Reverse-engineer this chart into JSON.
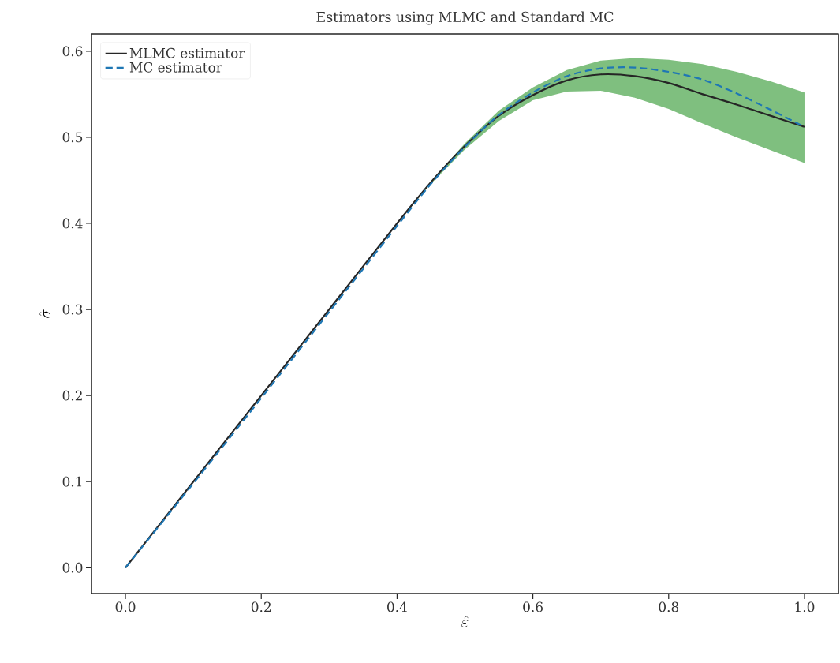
{
  "chart_data": {
    "type": "line",
    "title": "Estimators using MLMC and Standard MC",
    "xlabel": "\\hat{\\varepsilon}",
    "ylabel": "\\hat{\\sigma}",
    "x": [
      0,
      0.1,
      0.2,
      0.3,
      0.4,
      0.45,
      0.5,
      0.55,
      0.6,
      0.65,
      0.7,
      0.75,
      0.8,
      0.85,
      0.9,
      0.95,
      1.0
    ],
    "series": [
      {
        "name": "MLMC estimator",
        "color": "#262626",
        "line_style": "solid",
        "values": [
          0,
          0.1,
          0.2,
          0.3,
          0.4,
          0.448,
          0.49,
          0.525,
          0.549,
          0.566,
          0.573,
          0.571,
          0.563,
          0.55,
          0.538,
          0.525,
          0.512
        ],
        "lower": [
          0,
          0.1,
          0.2,
          0.3,
          0.4,
          0.446,
          0.486,
          0.519,
          0.543,
          0.553,
          0.554,
          0.546,
          0.533,
          0.516,
          0.5,
          0.485,
          0.47
        ],
        "upper": [
          0,
          0.1,
          0.2,
          0.3,
          0.4,
          0.449,
          0.493,
          0.531,
          0.558,
          0.578,
          0.589,
          0.592,
          0.59,
          0.585,
          0.576,
          0.565,
          0.552
        ]
      },
      {
        "name": "MC estimator",
        "color": "#1f77b4",
        "line_style": "dashed",
        "values": [
          0,
          0.098,
          0.197,
          0.297,
          0.397,
          0.446,
          0.489,
          0.526,
          0.552,
          0.571,
          0.58,
          0.581,
          0.576,
          0.567,
          0.551,
          0.532,
          0.512
        ]
      }
    ],
    "xlim": [
      -0.05,
      1.05
    ],
    "ylim": [
      -0.03,
      0.62
    ],
    "xticks": [
      {
        "value": 0,
        "label": "0.0"
      },
      0.2,
      0.4,
      0.6,
      0.8,
      {
        "value": 1,
        "label": "1.0"
      }
    ],
    "yticks": [
      {
        "value": 0,
        "label": "0.0"
      },
      0.1,
      0.2,
      0.3,
      0.4,
      0.5,
      0.6
    ],
    "grid": false,
    "legend": "top left",
    "marker": "none"
  }
}
